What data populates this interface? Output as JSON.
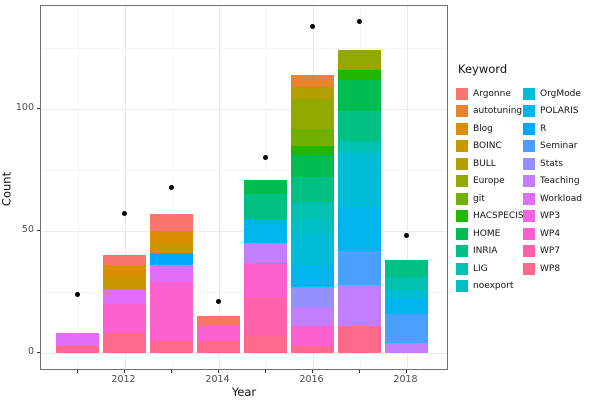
{
  "chart_data": {
    "type": "bar",
    "stacked": true,
    "overlay_points": true,
    "xlabel": "Year",
    "ylabel": "Count",
    "legend_title": "Keyword",
    "legend_position": "right",
    "grid": true,
    "y_tick_labels": [
      "0",
      "50",
      "100"
    ],
    "y_major": [
      0,
      50,
      100
    ],
    "y_minor": [
      25,
      75,
      125
    ],
    "x_major_years": [
      2012,
      2014,
      2016,
      2018
    ],
    "x_minor_years": [
      2011,
      2013,
      2015,
      2017
    ],
    "x_tick_labels": [
      "2012",
      "2014",
      "2016",
      "2018"
    ],
    "ylim": [
      0,
      150
    ],
    "keywords": [
      {
        "name": "Argonne",
        "color": "#F8766D"
      },
      {
        "name": "autotuning",
        "color": "#E9842C"
      },
      {
        "name": "Blog",
        "color": "#DB8E00"
      },
      {
        "name": "BOINC",
        "color": "#C99800"
      },
      {
        "name": "BULL",
        "color": "#B3A000"
      },
      {
        "name": "Europe",
        "color": "#92AA00"
      },
      {
        "name": "git",
        "color": "#6FB000"
      },
      {
        "name": "HACSPECIS",
        "color": "#21B700"
      },
      {
        "name": "HOME",
        "color": "#00BC51"
      },
      {
        "name": "INRIA",
        "color": "#00C084"
      },
      {
        "name": "LIG",
        "color": "#00C0AF"
      },
      {
        "name": "noexport",
        "color": "#00BFC4"
      },
      {
        "name": "OrgMode",
        "color": "#00BCD4"
      },
      {
        "name": "POLARIS",
        "color": "#00B5EE"
      },
      {
        "name": "R",
        "color": "#00A9FF"
      },
      {
        "name": "Seminar",
        "color": "#4BA0FF"
      },
      {
        "name": "Stats",
        "color": "#9491FF"
      },
      {
        "name": "Teaching",
        "color": "#C27EFF"
      },
      {
        "name": "Workload",
        "color": "#E26EF7"
      },
      {
        "name": "WP3",
        "color": "#F163E2"
      },
      {
        "name": "WP4",
        "color": "#FC61CF"
      },
      {
        "name": "WP7",
        "color": "#FF62A9"
      },
      {
        "name": "WP8",
        "color": "#FF6A8C"
      }
    ],
    "bars": [
      {
        "year": 2011,
        "total": 8,
        "segments": [
          [
            "Workload",
            5
          ],
          [
            "WP8",
            3
          ]
        ]
      },
      {
        "year": 2012,
        "total": 40,
        "segments": [
          [
            "Argonne",
            4
          ],
          [
            "Blog",
            5
          ],
          [
            "BOINC",
            5
          ],
          [
            "Workload",
            6
          ],
          [
            "WP4",
            12
          ],
          [
            "WP8",
            8
          ]
        ]
      },
      {
        "year": 2013,
        "total": 57,
        "segments": [
          [
            "Argonne",
            7
          ],
          [
            "Blog",
            5
          ],
          [
            "BOINC",
            4
          ],
          [
            "R",
            5
          ],
          [
            "Workload",
            7
          ],
          [
            "WP4",
            24
          ],
          [
            "WP8",
            5
          ]
        ]
      },
      {
        "year": 2014,
        "total": 15,
        "segments": [
          [
            "Argonne",
            4
          ],
          [
            "WP4",
            6
          ],
          [
            "WP8",
            5
          ]
        ]
      },
      {
        "year": 2015,
        "total": 71,
        "segments": [
          [
            "HOME",
            6
          ],
          [
            "INRIA",
            10
          ],
          [
            "POLARIS",
            10
          ],
          [
            "Teaching",
            8
          ],
          [
            "WP4",
            14
          ],
          [
            "WP7",
            16
          ],
          [
            "WP8",
            7
          ]
        ]
      },
      {
        "year": 2016,
        "total": 114,
        "segments": [
          [
            "autotuning",
            5
          ],
          [
            "BULL",
            5
          ],
          [
            "Europe",
            12
          ],
          [
            "git",
            7
          ],
          [
            "HACSPECIS",
            4
          ],
          [
            "HOME",
            9
          ],
          [
            "INRIA",
            10
          ],
          [
            "LIG",
            7
          ],
          [
            "noexport",
            6
          ],
          [
            "OrgMode",
            13
          ],
          [
            "POLARIS",
            9
          ],
          [
            "Stats",
            8
          ],
          [
            "Teaching",
            8
          ],
          [
            "WP4",
            8
          ],
          [
            "WP8",
            3
          ]
        ]
      },
      {
        "year": 2017,
        "total": 124,
        "segments": [
          [
            "Europe",
            8
          ],
          [
            "HACSPECIS",
            4
          ],
          [
            "HOME",
            13
          ],
          [
            "INRIA",
            12
          ],
          [
            "LIG",
            4
          ],
          [
            "noexport",
            2
          ],
          [
            "OrgMode",
            21
          ],
          [
            "POLARIS",
            18
          ],
          [
            "Seminar",
            14
          ],
          [
            "Teaching",
            17
          ],
          [
            "WP8",
            11
          ]
        ]
      },
      {
        "year": 2018,
        "total": 38,
        "segments": [
          [
            "INRIA",
            7
          ],
          [
            "LIG",
            5
          ],
          [
            "OrgMode",
            4
          ],
          [
            "POLARIS",
            6
          ],
          [
            "Seminar",
            12
          ],
          [
            "Teaching",
            4
          ]
        ]
      }
    ],
    "points": [
      {
        "year": 2011,
        "value": 24
      },
      {
        "year": 2012,
        "value": 57
      },
      {
        "year": 2013,
        "value": 68
      },
      {
        "year": 2014,
        "value": 21
      },
      {
        "year": 2015,
        "value": 80
      },
      {
        "year": 2016,
        "value": 134
      },
      {
        "year": 2017,
        "value": 136
      },
      {
        "year": 2018,
        "value": 48
      }
    ]
  }
}
